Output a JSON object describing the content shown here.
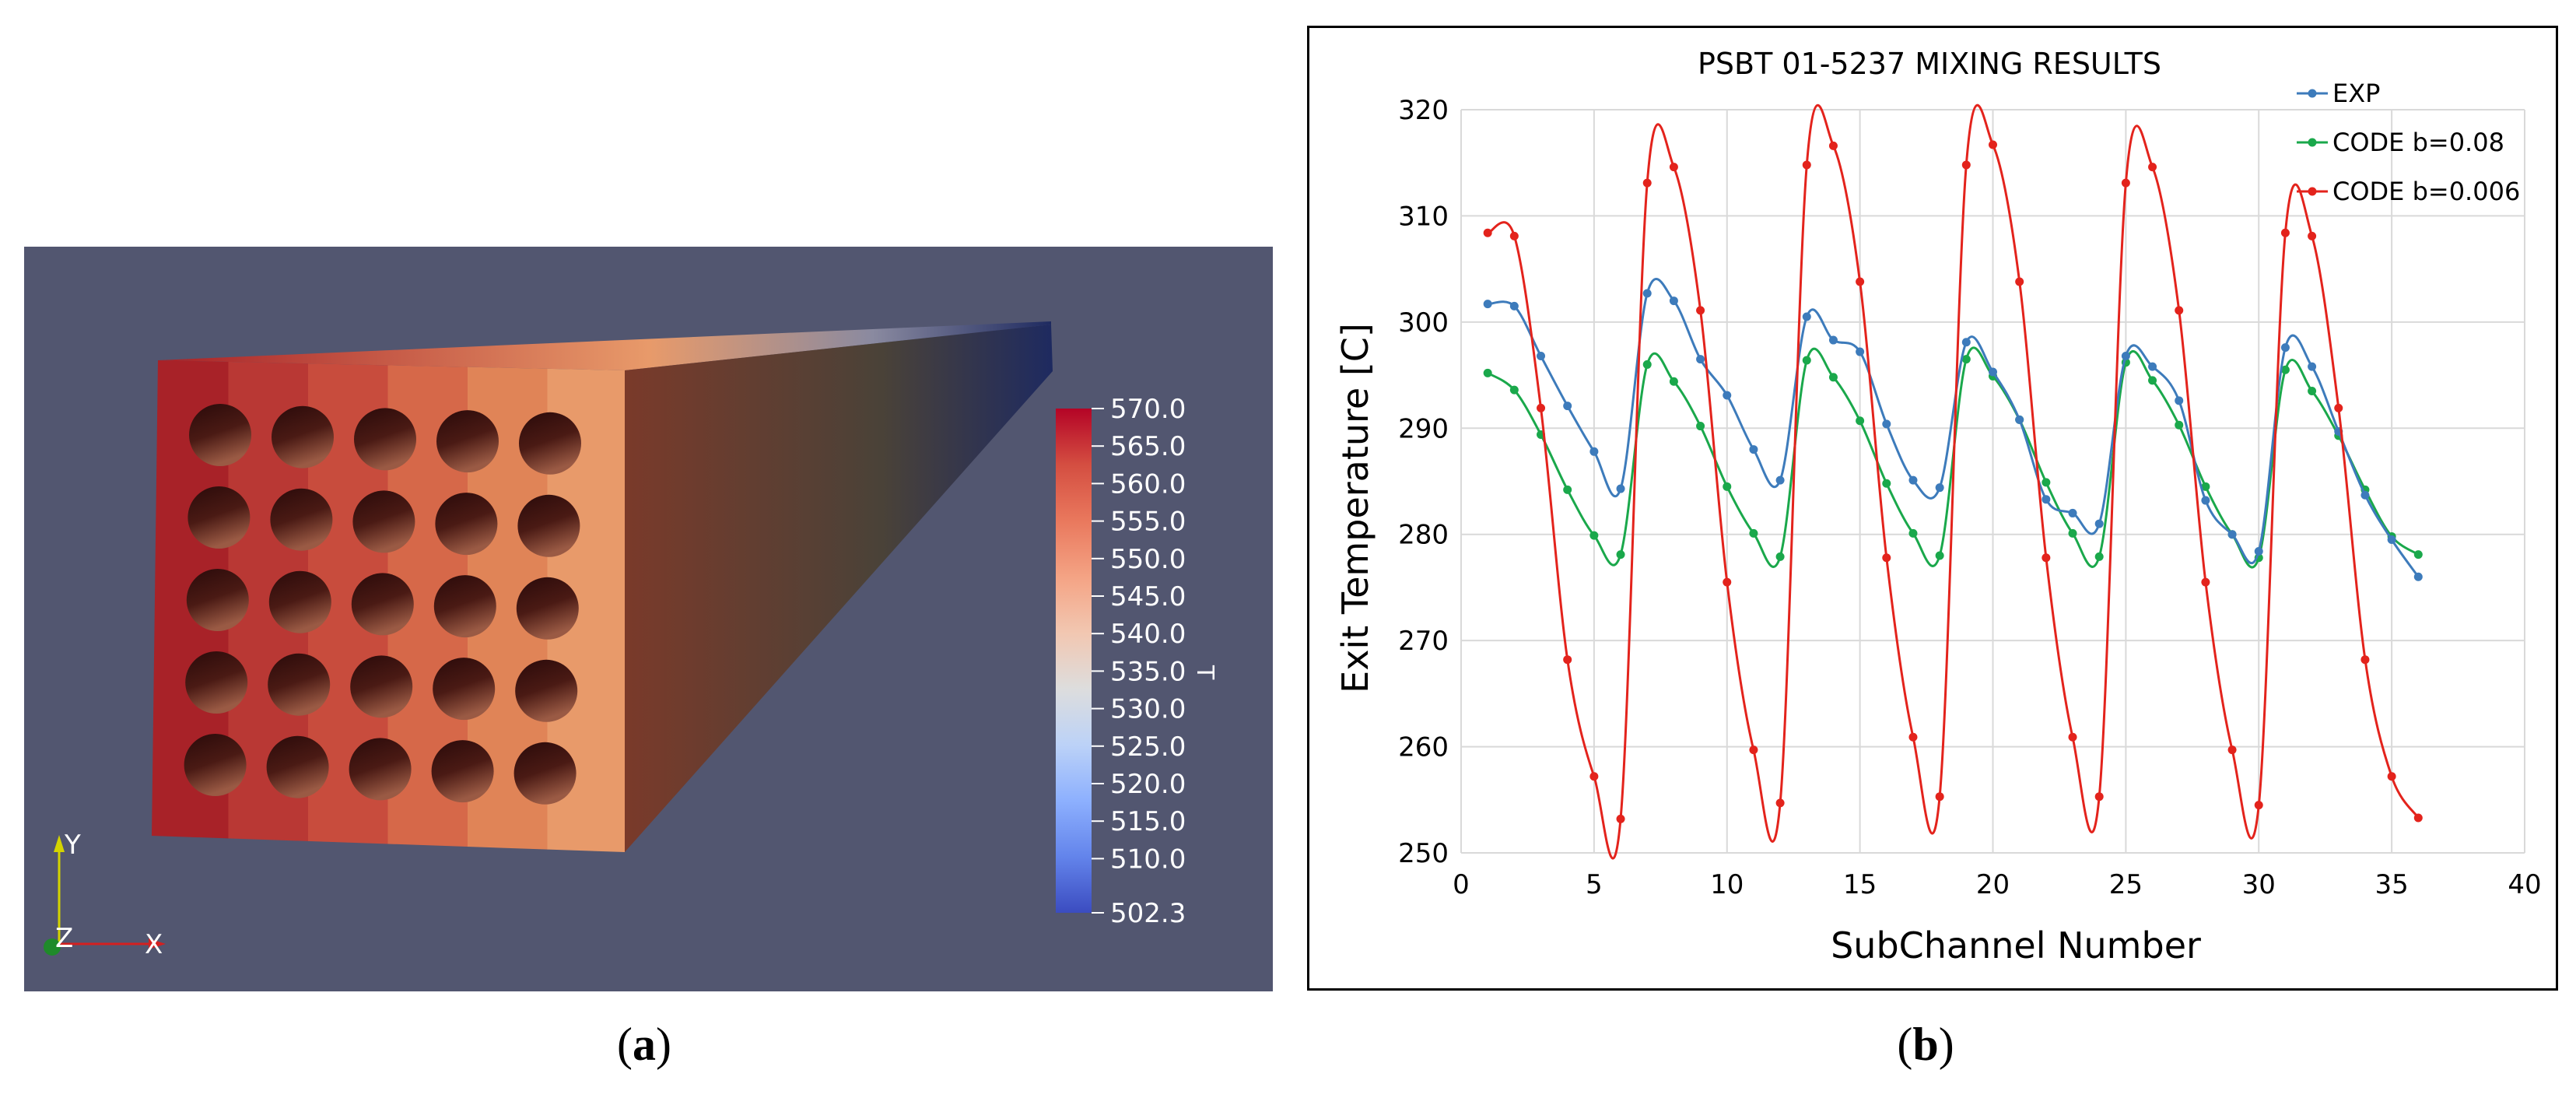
{
  "captions": {
    "a_open": "(",
    "a_letter": "a",
    "a_close": ")",
    "b_open": "(",
    "b_letter": "b",
    "b_close": ")"
  },
  "render": {
    "background_color": "#525670",
    "front_face_colors": [
      "#a82228",
      "#b93834",
      "#c84c3d",
      "#d66849",
      "#e08457",
      "#e89a6a"
    ],
    "side_gradient": [
      "#7a3a2a",
      "#4a4238",
      "#1e2a60"
    ],
    "hole_rows": 5,
    "hole_cols": 5,
    "colorbar": {
      "title": "T",
      "labels": [
        "570.0",
        "565.0",
        "560.0",
        "555.0",
        "550.0",
        "545.0",
        "540.0",
        "535.0",
        "530.0",
        "525.0",
        "520.0",
        "515.0",
        "510.0",
        "502.3"
      ],
      "colors": [
        "#b40426",
        "#d44e41",
        "#e9785d",
        "#f4a384",
        "#f2c7b1",
        "#dddddd",
        "#bcd2f7",
        "#8db0fe",
        "#6384eb",
        "#3b4cc0"
      ]
    },
    "axes_triad": {
      "y": "Y",
      "x": "X",
      "z": "Z"
    }
  },
  "chart_data": {
    "type": "line",
    "title": "PSBT 01-5237 MIXING RESULTS",
    "xlabel": "SubChannel Number",
    "ylabel": "Exit Temperature [C]",
    "xlim": [
      0,
      40
    ],
    "ylim": [
      250,
      320
    ],
    "xticks": [
      0,
      5,
      10,
      15,
      20,
      25,
      30,
      35,
      40
    ],
    "yticks": [
      250,
      260,
      270,
      280,
      290,
      300,
      310,
      320
    ],
    "grid": true,
    "legend_position": "top-right",
    "x": [
      1,
      2,
      3,
      4,
      5,
      6,
      7,
      8,
      9,
      10,
      11,
      12,
      13,
      14,
      15,
      16,
      17,
      18,
      19,
      20,
      21,
      22,
      23,
      24,
      25,
      26,
      27,
      28,
      29,
      30,
      31,
      32,
      33,
      34,
      35,
      36
    ],
    "series": [
      {
        "name": "EXP",
        "color": "#3d7bbb",
        "values": [
          301.7,
          301.5,
          296.8,
          292.1,
          287.8,
          284.3,
          302.7,
          302.0,
          296.5,
          293.1,
          288.0,
          285.1,
          300.5,
          298.3,
          297.2,
          290.4,
          285.1,
          284.4,
          298.1,
          295.3,
          290.8,
          283.3,
          282.0,
          281.0,
          296.8,
          295.8,
          292.6,
          283.2,
          280.0,
          278.4,
          297.6,
          295.8,
          289.7,
          283.7,
          279.5,
          276.0
        ]
      },
      {
        "name": "CODE b=0.08",
        "color": "#1aa84b",
        "values": [
          295.2,
          293.6,
          289.4,
          284.2,
          279.9,
          278.1,
          296.0,
          294.4,
          290.2,
          284.5,
          280.1,
          277.9,
          296.4,
          294.8,
          290.7,
          284.8,
          280.1,
          278.0,
          296.5,
          294.9,
          290.8,
          284.9,
          280.1,
          277.9,
          296.2,
          294.5,
          290.3,
          284.5,
          280.0,
          277.8,
          295.5,
          293.5,
          289.3,
          284.2,
          279.8,
          278.1
        ]
      },
      {
        "name": "CODE b=0.006",
        "color": "#e3231c",
        "values": [
          308.4,
          308.1,
          291.9,
          268.2,
          257.2,
          253.2,
          313.1,
          314.6,
          301.1,
          275.5,
          259.7,
          254.7,
          314.8,
          316.6,
          303.8,
          277.8,
          260.9,
          255.3,
          314.8,
          316.7,
          303.8,
          277.8,
          260.9,
          255.3,
          313.1,
          314.6,
          301.1,
          275.5,
          259.7,
          254.5,
          308.4,
          308.1,
          291.9,
          268.2,
          257.2,
          253.3
        ]
      }
    ]
  }
}
